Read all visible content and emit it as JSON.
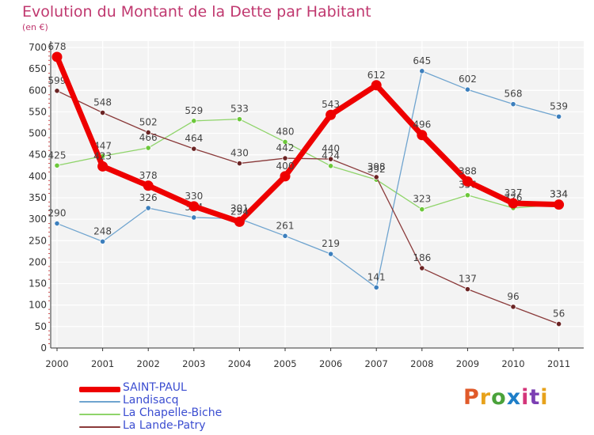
{
  "title": "Evolution du Montant de la Dette par Habitant",
  "subtitle": "(en €)",
  "logo_text": "Proxiti",
  "logo_colors": [
    "#e05a2a",
    "#e7a21b",
    "#4aa23a",
    "#1e7ec8",
    "#d4357a",
    "#7c3fb3",
    "#e7a21b"
  ],
  "chart_data": {
    "type": "line",
    "x": [
      "2000",
      "2001",
      "2002",
      "2003",
      "2004",
      "2005",
      "2006",
      "2007",
      "2008",
      "2009",
      "2010",
      "2011"
    ],
    "ylim": [
      0,
      700
    ],
    "yticks": [
      0,
      50,
      100,
      150,
      200,
      250,
      300,
      350,
      400,
      450,
      500,
      550,
      600,
      650,
      700
    ],
    "grid": true,
    "legend_position": "bottom-left",
    "series": [
      {
        "name": "La Chapelle-Biche",
        "color": "#8fd46a",
        "marker": "#6cc83a",
        "values": [
          425,
          447,
          466,
          529,
          533,
          480,
          424,
          392,
          323,
          356,
          326,
          334
        ]
      },
      {
        "name": "Landisacq",
        "color": "#6fa4cf",
        "marker": "#3c7fbd",
        "values": [
          290,
          248,
          326,
          304,
          301,
          261,
          219,
          141,
          645,
          602,
          568,
          539
        ]
      },
      {
        "name": "La Lande-Patry",
        "color": "#8a3a3a",
        "marker": "#6b2424",
        "values": [
          599,
          548,
          502,
          464,
          430,
          442,
          440,
          398,
          186,
          137,
          96,
          56
        ]
      },
      {
        "name": "SAINT-PAUL",
        "color": "#ee0000",
        "marker": "#ee0000",
        "values": [
          678,
          423,
          378,
          330,
          294,
          400,
          543,
          612,
          496,
          388,
          337,
          334
        ]
      }
    ],
    "legend_order": [
      "SAINT-PAUL",
      "Landisacq",
      "La Chapelle-Biche",
      "La Lande-Patry"
    ]
  }
}
